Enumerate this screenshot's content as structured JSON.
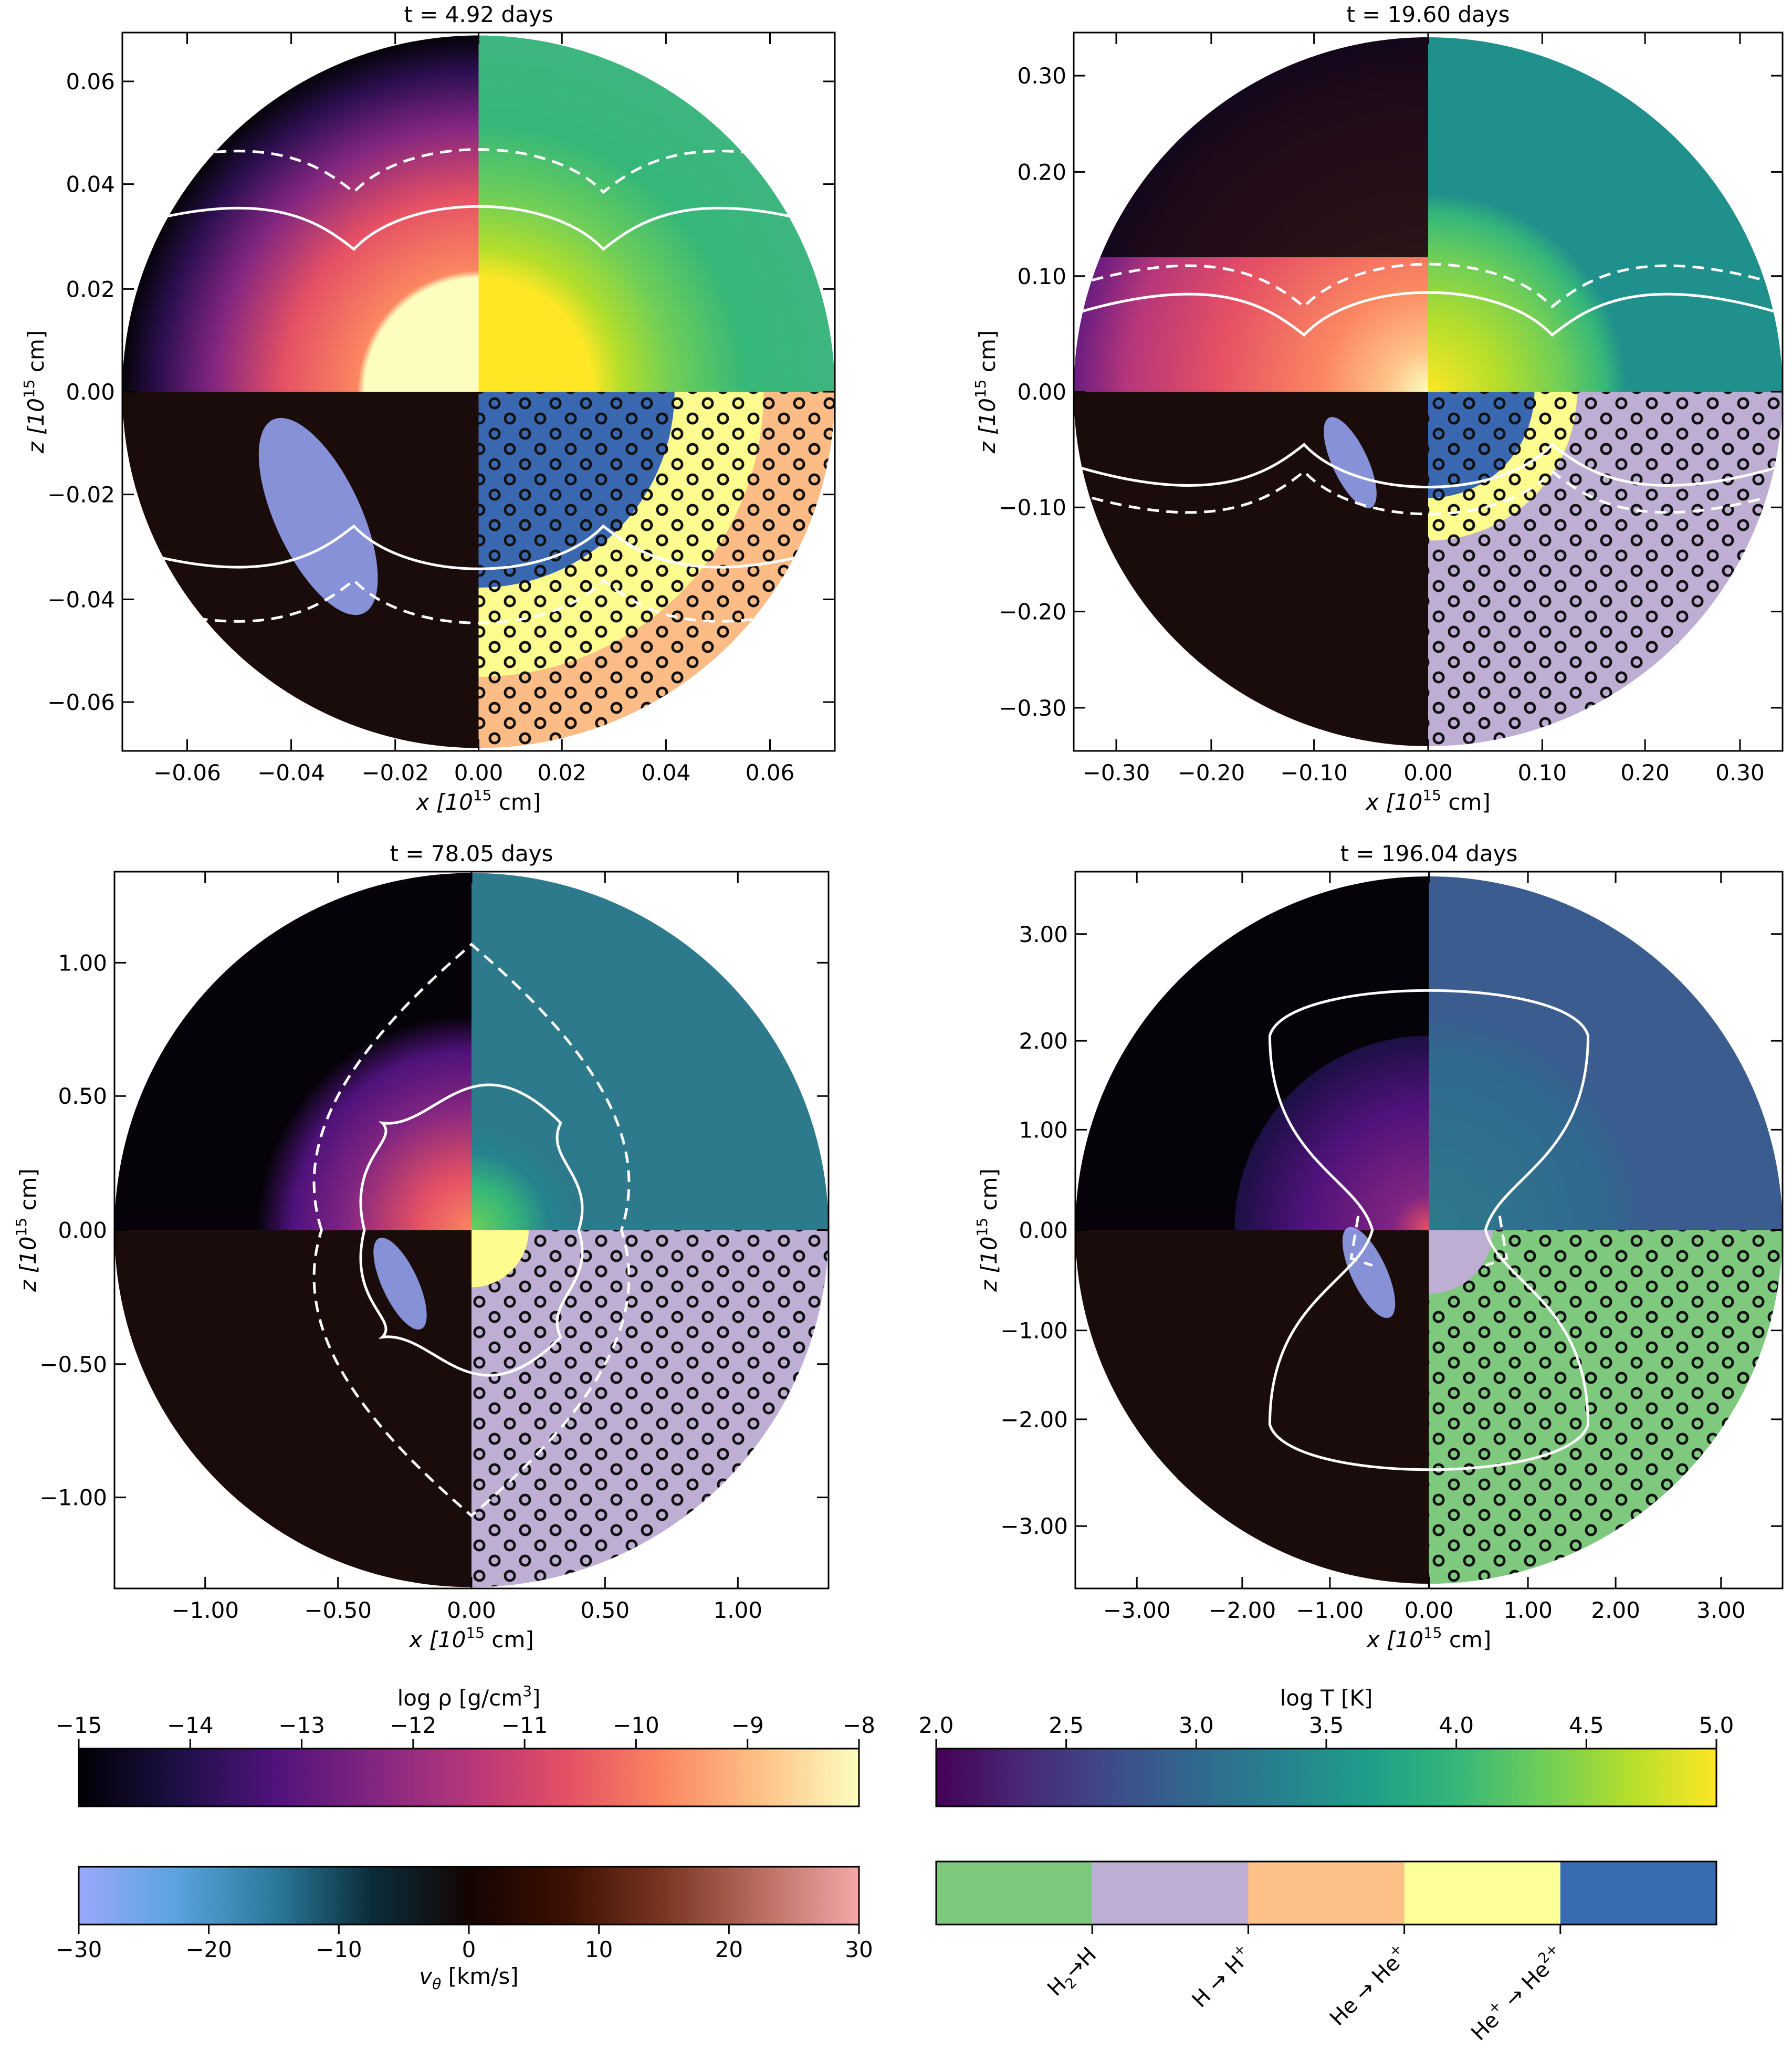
{
  "figure": {
    "panels": [
      {
        "title": "t = 4.92 days",
        "x_ticks": [
          "−0.06",
          "−0.04",
          "−0.02",
          "0.00",
          "0.02",
          "0.04",
          "0.06"
        ],
        "z_ticks": [
          "0.06",
          "0.04",
          "0.02",
          "0.00",
          "−0.02",
          "−0.04",
          "−0.06"
        ],
        "top_right_color": "#3db67f",
        "pattern_bands": [
          {
            "inner": 0.0,
            "outer": 0.55,
            "color": "#3a68b0",
            "hatch": true
          },
          {
            "inner": 0.55,
            "outer": 0.8,
            "color": "#fdfd8f",
            "hatch": true
          },
          {
            "inner": 0.8,
            "outer": 1.01,
            "color": "#fdbc85",
            "hatch": true
          }
        ],
        "outer_band": {
          "color": "#7fc97f",
          "hatch": false
        }
      },
      {
        "title": "t = 19.60 days",
        "x_ticks": [
          "−0.30",
          "−0.20",
          "−0.10",
          "0.00",
          "0.10",
          "0.20",
          "0.30"
        ],
        "z_ticks": [
          "0.30",
          "0.20",
          "0.10",
          "0.00",
          "−0.10",
          "−0.20",
          "−0.30"
        ],
        "top_right_color": "#20908c",
        "pattern_bands": [
          {
            "inner": 0.0,
            "outer": 0.3,
            "color": "#3a68b0",
            "hatch": true
          },
          {
            "inner": 0.3,
            "outer": 0.42,
            "color": "#fdfd8f",
            "hatch": true
          },
          {
            "inner": 0.42,
            "outer": 1.01,
            "color": "#beaed4",
            "hatch": true
          }
        ],
        "outer_band": {
          "color": "#beaed4",
          "hatch": false
        }
      },
      {
        "title": "t = 78.05 days",
        "x_ticks": [
          "−1.00",
          "−0.50",
          "0.00",
          "0.50",
          "1.00"
        ],
        "z_ticks": [
          "1.00",
          "0.50",
          "0.00",
          "−0.50",
          "−1.00"
        ],
        "top_right_color": "#2d7a8c",
        "pattern_bands": [
          {
            "inner": 0.0,
            "outer": 0.16,
            "color": "#fdfd8f",
            "hatch": false
          },
          {
            "inner": 0.16,
            "outer": 1.01,
            "color": "#beaed4",
            "hatch": true
          }
        ],
        "outer_band": {
          "color": "#beaed4",
          "hatch": false
        }
      },
      {
        "title": "t = 196.04 days",
        "x_ticks": [
          "−3.00",
          "−2.00",
          "−1.00",
          "0.00",
          "1.00",
          "2.00",
          "3.00"
        ],
        "z_ticks": [
          "3.00",
          "2.00",
          "1.00",
          "0.00",
          "−1.00",
          "−2.00",
          "−3.00"
        ],
        "top_right_color": "#3a5c8f",
        "pattern_bands": [
          {
            "inner": 0.0,
            "outer": 0.18,
            "color": "#beaed4",
            "hatch": false
          },
          {
            "inner": 0.18,
            "outer": 1.01,
            "color": "#7fc97f",
            "hatch": true
          }
        ],
        "outer_band": {
          "color": "#7fc97f",
          "hatch": false
        }
      }
    ],
    "xlabel": "x [10",
    "xlabel_exp": "15",
    "xlabel_unit": " cm]",
    "zlabel": "z [10",
    "zlabel_exp": "15",
    "zlabel_unit": " cm]",
    "colorbars": {
      "density": {
        "label": "log ρ [g/cm",
        "label_exp": "3",
        "label_end": "]",
        "ticks": [
          "−15",
          "−14",
          "−13",
          "−12",
          "−11",
          "−10",
          "−9",
          "−8"
        ],
        "range": [
          -15,
          -8
        ],
        "stops": [
          "#000004",
          "#1c1044",
          "#4f127b",
          "#812581",
          "#b5367a",
          "#e55064",
          "#fb8761",
          "#fec287",
          "#fcfdbf"
        ]
      },
      "temperature": {
        "label": "log T [K]",
        "ticks": [
          "2.0",
          "2.5",
          "3.0",
          "3.5",
          "4.0",
          "4.5",
          "5.0"
        ],
        "range": [
          2,
          5
        ],
        "stops": [
          "#440154",
          "#482878",
          "#3e4a89",
          "#31688e",
          "#26828e",
          "#1f9e89",
          "#35b779",
          "#6ece58",
          "#b5de2b",
          "#fde725"
        ]
      },
      "velocity": {
        "label": "v",
        "label_sub": "θ",
        "label_end": " [km/s]",
        "ticks": [
          "−30",
          "−20",
          "−10",
          "0",
          "10",
          "20",
          "30"
        ],
        "range": [
          -30,
          30
        ],
        "stops": [
          "#9aa9fb",
          "#5aa3df",
          "#2b7a9c",
          "#0b2d3a",
          "#140403",
          "#3c1002",
          "#7a3522",
          "#bb6d62",
          "#f4a8a8"
        ]
      },
      "ionization": {
        "colors": [
          "#7fc97f",
          "#beaed4",
          "#fdc086",
          "#ffff99",
          "#386cb0"
        ],
        "labels": [
          {
            "main": "H",
            "sub": "2",
            "rest": "→H",
            "sup": ""
          },
          {
            "main": "H → H",
            "sub": "",
            "rest": "",
            "sup": "+"
          },
          {
            "main": "He → He",
            "sub": "",
            "rest": "",
            "sup": "+"
          },
          {
            "main": "He",
            "sub": "",
            "rest": "",
            "sup": "+",
            "tail": " → He",
            "tail_sup": "2+"
          }
        ]
      }
    }
  }
}
